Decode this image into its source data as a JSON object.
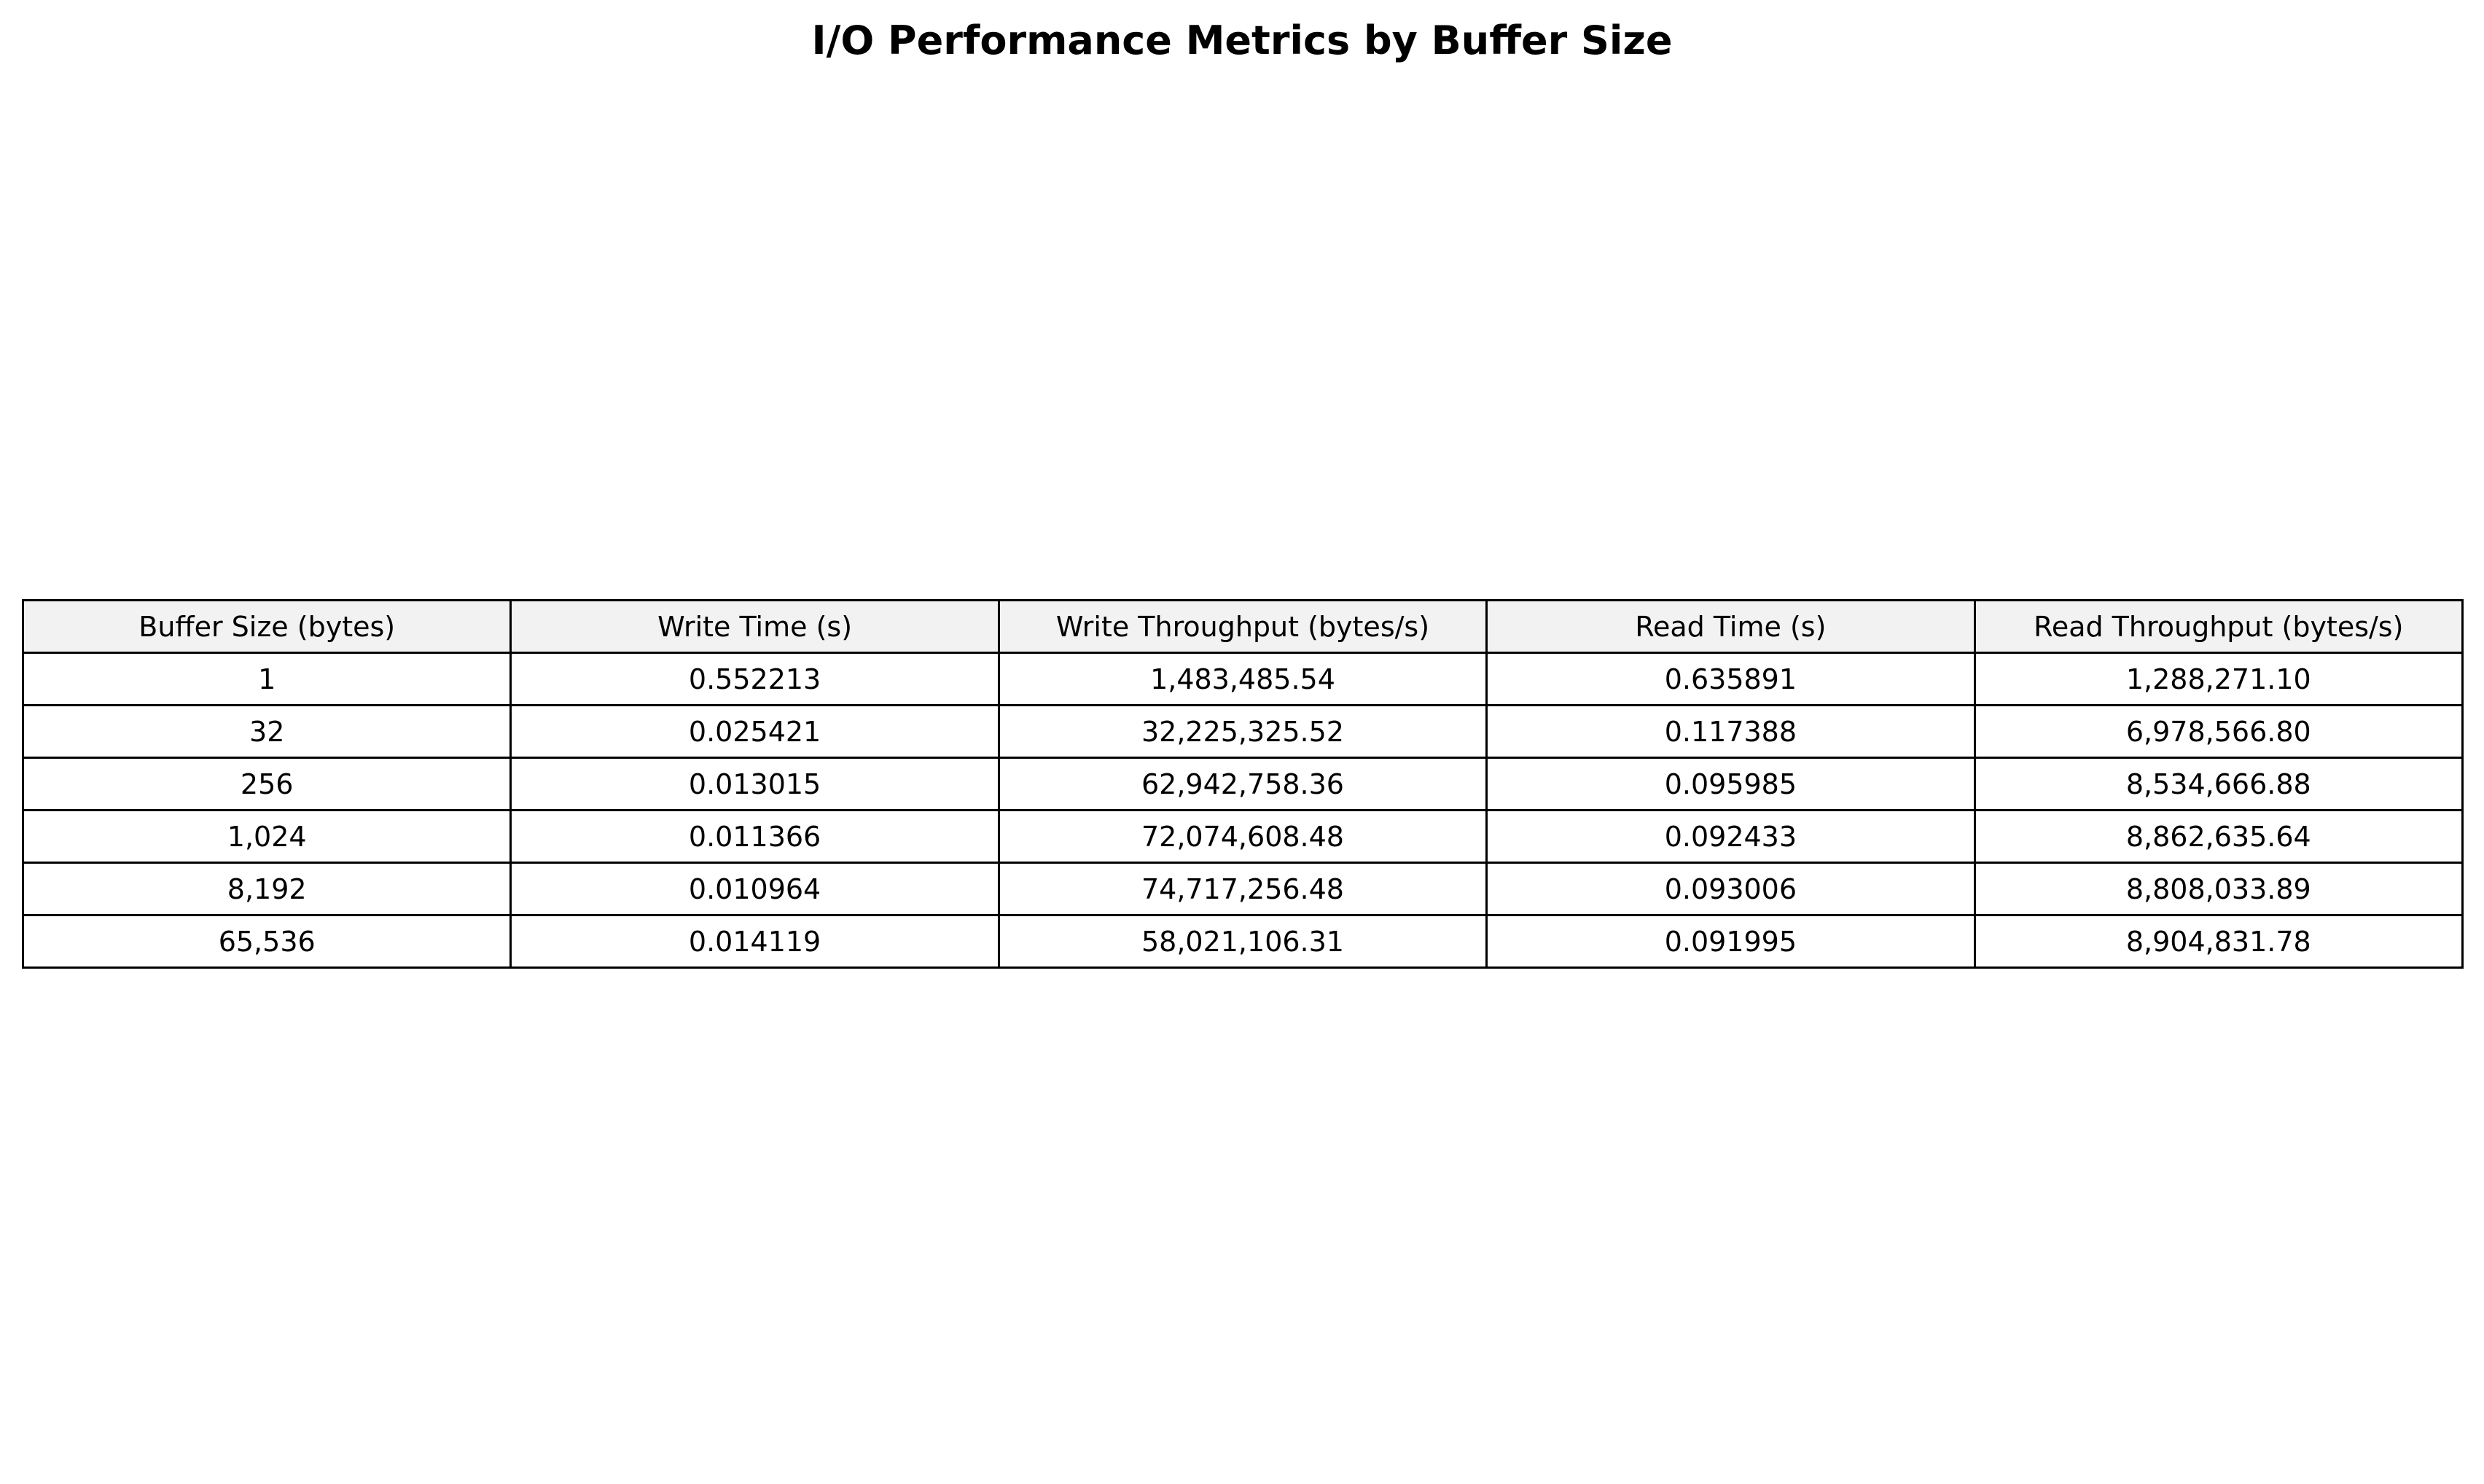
{
  "chart_data": {
    "type": "table",
    "title": "I/O Performance Metrics by Buffer Size",
    "columns": [
      "Buffer Size (bytes)",
      "Write Time (s)",
      "Write Throughput (bytes/s)",
      "Read Time (s)",
      "Read Throughput (bytes/s)"
    ],
    "rows": [
      [
        "1",
        "0.552213",
        "1,483,485.54",
        "0.635891",
        "1,288,271.10"
      ],
      [
        "32",
        "0.025421",
        "32,225,325.52",
        "0.117388",
        "6,978,566.80"
      ],
      [
        "256",
        "0.013015",
        "62,942,758.36",
        "0.095985",
        "8,534,666.88"
      ],
      [
        "1,024",
        "0.011366",
        "72,074,608.48",
        "0.092433",
        "8,862,635.64"
      ],
      [
        "8,192",
        "0.010964",
        "74,717,256.48",
        "0.093006",
        "8,808,033.89"
      ],
      [
        "65,536",
        "0.014119",
        "58,021,106.31",
        "0.091995",
        "8,904,831.78"
      ]
    ],
    "header_color": "#f2f2f2",
    "cell_color": "#ffffff",
    "border_color": "#000000"
  }
}
